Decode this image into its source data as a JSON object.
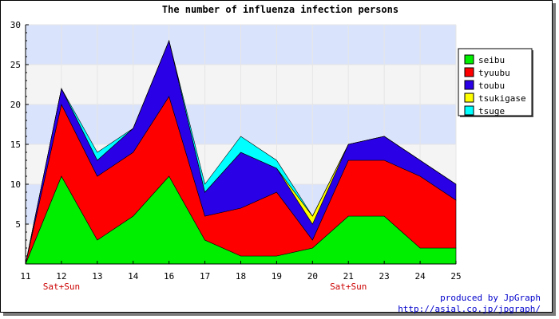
{
  "colors": {
    "band_blue": "#d9e3fb",
    "band_gray": "#f4f4f4",
    "weekend_label": "#cc0000",
    "credit": "#0000cc"
  },
  "credit": {
    "line1": "produced by JpGraph",
    "line2": "http://asial.co.jp/jpgraph/"
  },
  "chart_data": {
    "type": "area",
    "stacked": true,
    "title": "The number of influenza infection persons",
    "xlabel": "",
    "ylabel": "",
    "categories": [
      "11",
      "12",
      "13",
      "14",
      "16",
      "17",
      "18",
      "19",
      "20",
      "21",
      "23",
      "24",
      "25"
    ],
    "sublabels": [
      "",
      "Sat+Sun",
      "",
      "",
      "",
      "",
      "",
      "",
      "",
      "Sat+Sun",
      "",
      "",
      ""
    ],
    "ylim": [
      0,
      30
    ],
    "yticks": [
      5,
      10,
      15,
      20,
      25,
      30
    ],
    "legend_position": "right",
    "grid": true,
    "series": [
      {
        "name": "seibu",
        "color": "#00ee00",
        "values": [
          0,
          11,
          3,
          6,
          11,
          3,
          1,
          1,
          2,
          6,
          6,
          2,
          2
        ]
      },
      {
        "name": "tyuubu",
        "color": "#ff0000",
        "values": [
          0,
          9,
          8,
          8,
          10,
          3,
          6,
          8,
          1,
          7,
          7,
          9,
          6
        ]
      },
      {
        "name": "toubu",
        "color": "#2a00e6",
        "values": [
          0,
          2,
          2,
          3,
          7,
          3,
          7,
          3,
          2,
          2,
          3,
          2,
          2
        ]
      },
      {
        "name": "tsukigase",
        "color": "#ffff00",
        "values": [
          0,
          0,
          0,
          0,
          0,
          0,
          0,
          0,
          1,
          0,
          0,
          0,
          0
        ]
      },
      {
        "name": "tsuge",
        "color": "#00ffff",
        "values": [
          0,
          0,
          1,
          0,
          0,
          1,
          2,
          1,
          0,
          0,
          0,
          0,
          0
        ]
      }
    ]
  }
}
